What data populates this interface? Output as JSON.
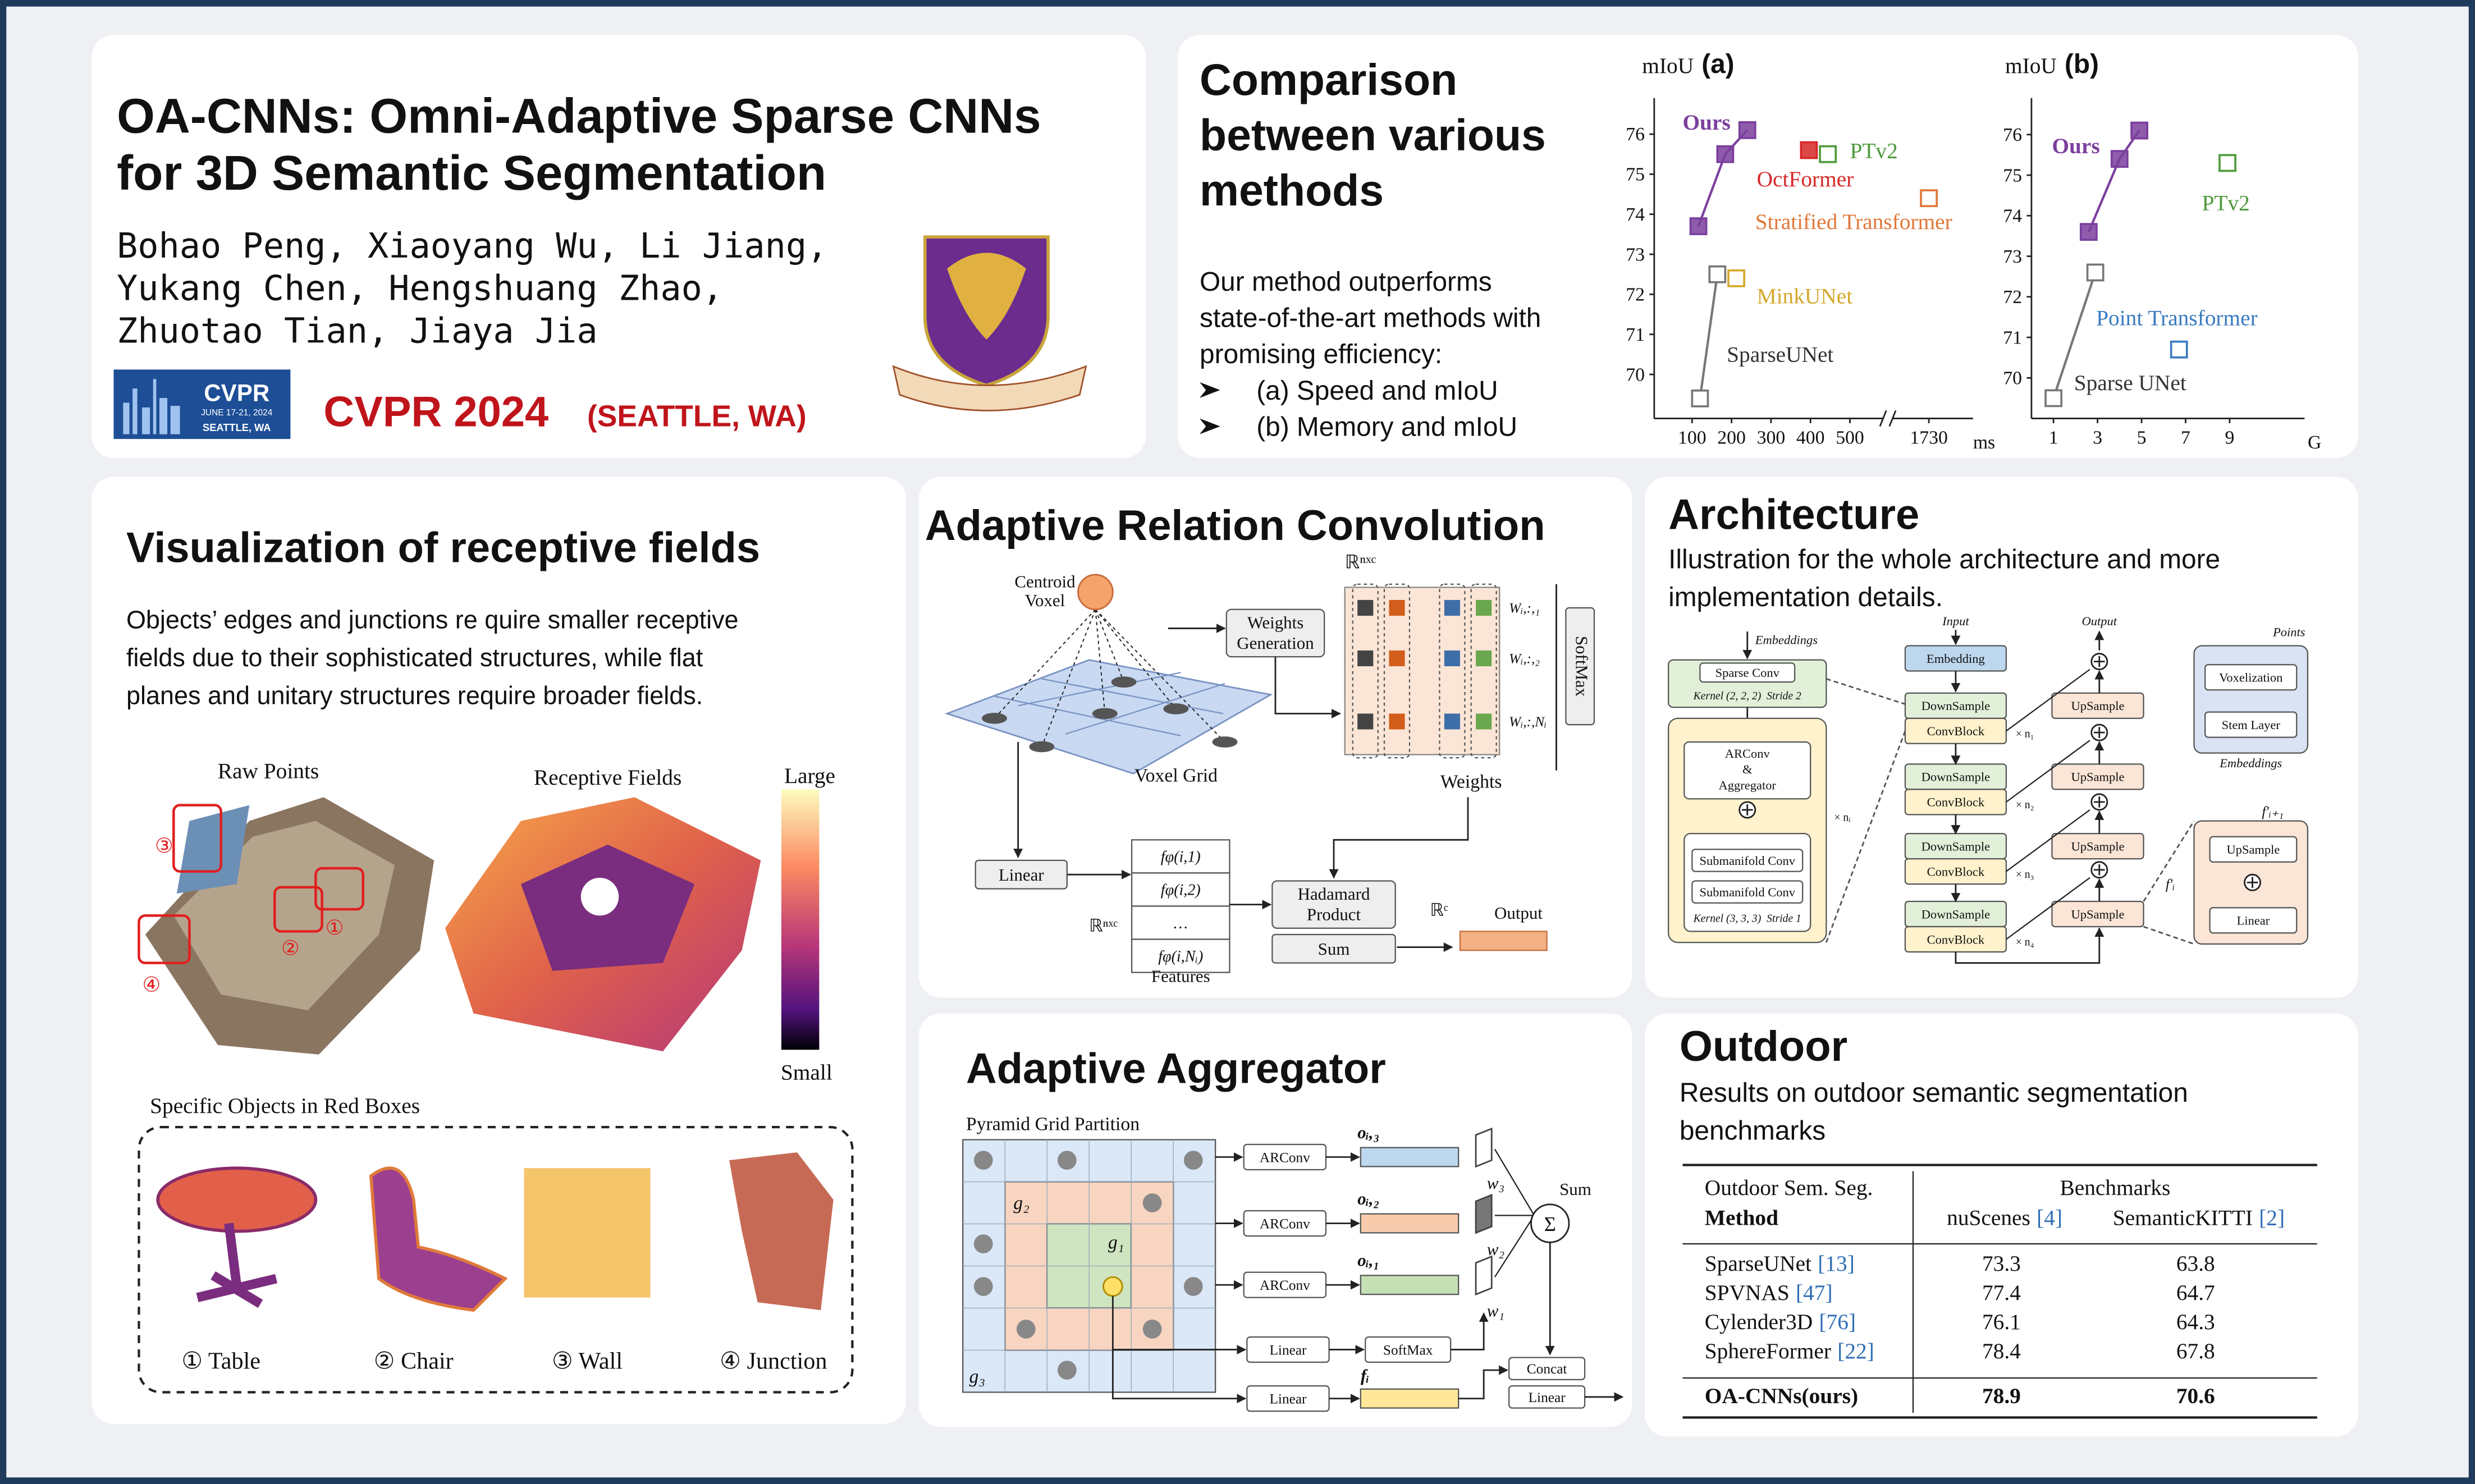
{
  "header": {
    "title": [
      "OA-CNNs: Omni-Adaptive Sparse CNNs",
      "for 3D Semantic Segmentation"
    ],
    "authors": [
      "Bohao Peng, Xiaoyang Wu, Li Jiang,",
      "Yukang Chen, Hengshuang Zhao,",
      "Zhuotao Tian, Jiaya Jia"
    ],
    "cvpr_logo": {
      "name": "CVPR",
      "dates": "JUNE 17-21, 2024",
      "city": "SEATTLE, WA"
    },
    "conference": "CVPR 2024",
    "location": "(SEATTLE, WA)"
  },
  "comparison": {
    "title": [
      "Comparison",
      "between various",
      "methods"
    ],
    "description": [
      "Our method outperforms",
      "state-of-the-art methods with",
      "promising efficiency:"
    ],
    "bullets": [
      "(a) Speed and mIoU",
      "(b) Memory and mIoU"
    ],
    "charts": [
      {
        "type": "scatter",
        "label": "(a)",
        "y_label": "mIoU",
        "x_unit": "ms",
        "xlim": [
          0,
          1840
        ],
        "ylim": [
          68.9,
          76.9
        ],
        "xticks": [
          100,
          200,
          300,
          400,
          500,
          1730
        ],
        "yticks": [
          70,
          71,
          72,
          73,
          74,
          75,
          76
        ],
        "series": [
          {
            "name": "Ours",
            "color": "#7b3f9e",
            "filled": true,
            "line": true,
            "x": [
              116,
              184,
              240
            ],
            "values": [
              73.7,
              75.5,
              76.1
            ]
          },
          {
            "name": "OctFormer",
            "color": "#d62828",
            "filled": true,
            "x": [
              396
            ],
            "values": [
              75.6
            ]
          },
          {
            "name": "PTv2",
            "color": "#4d9a3a",
            "x": [
              444
            ],
            "values": [
              75.5
            ]
          },
          {
            "name": "Stratified Transformer",
            "color": "#e0783a",
            "x": [
              1730
            ],
            "values": [
              74.4
            ]
          },
          {
            "name": "MinkUNet",
            "color": "#d4a82a",
            "x": [
              212
            ],
            "values": [
              72.4
            ]
          },
          {
            "name": "SparseUNet",
            "color": "#777777",
            "line": true,
            "x": [
              120,
              164
            ],
            "values": [
              69.4,
              72.5
            ]
          }
        ]
      },
      {
        "type": "scatter",
        "label": "(b)",
        "y_label": "mIoU",
        "x_unit": "G",
        "xlim": [
          0,
          12.4
        ],
        "ylim": [
          69,
          76.9
        ],
        "xticks": [
          1,
          3,
          5,
          7,
          9
        ],
        "yticks": [
          70,
          71,
          72,
          73,
          74,
          75,
          76
        ],
        "series": [
          {
            "name": "Ours",
            "color": "#7b3f9e",
            "filled": true,
            "line": true,
            "x": [
              2.6,
              4.0,
              4.9
            ],
            "values": [
              73.6,
              75.4,
              76.1
            ]
          },
          {
            "name": "PTv2",
            "color": "#4d9a3a",
            "x": [
              8.9
            ],
            "values": [
              75.3
            ]
          },
          {
            "name": "Point Transformer",
            "color": "#3a7ac0",
            "x": [
              6.7
            ],
            "values": [
              70.7
            ]
          },
          {
            "name": "Sparse UNet",
            "color": "#777777",
            "line": true,
            "x": [
              1.0,
              2.9
            ],
            "values": [
              69.5,
              72.6
            ]
          }
        ]
      }
    ]
  },
  "visualization": {
    "title": "Visualization of receptive fields",
    "description": [
      "Objects’ edges and junctions re quire smaller receptive",
      "fields due to their sophisticated structures, while flat",
      "planes and unitary structures require broader fields."
    ],
    "raw_points": "Raw Points",
    "receptive_fields": "Receptive Fields",
    "colorbar": {
      "top": "Large",
      "bottom": "Small"
    },
    "markers": [
      "③",
      "②",
      "①",
      "④"
    ],
    "objects_caption": "Specific Objects in Red Boxes",
    "objects": [
      "① Table",
      "② Chair",
      "③ Wall",
      "④ Junction"
    ]
  },
  "arc": {
    "title": "Adaptive Relation Convolution",
    "centroid": [
      "Centroid",
      "Voxel"
    ],
    "voxel_grid": "Voxel Grid",
    "weights_generation": [
      "Weights",
      "Generation"
    ],
    "weights_space": "ℝⁿˣᶜ",
    "weight_rows": [
      "Wᵢ,:,₁",
      "Wᵢ,:,₂",
      "Wᵢ,:,Nᵢ"
    ],
    "softmax": "SoftMax",
    "weights": "Weights",
    "linear": "Linear",
    "features": [
      "fφ(i,1)",
      "fφ(i,2)",
      "…",
      "fφ(i,Nᵢ)"
    ],
    "features_space": "ℝⁿˣᶜ",
    "features_label": "Features",
    "hadamard": [
      "Hadamard",
      "Product"
    ],
    "sum": "Sum",
    "output_space": "ℝᶜ",
    "output": "Output"
  },
  "architecture": {
    "title": "Architecture",
    "description": [
      "Illustration for the whole architecture and more",
      "implementation details."
    ],
    "block": {
      "embeddings": "Embeddings",
      "sparse_conv": "Sparse Conv",
      "downsample_kernel": "Kernel (2, 2, 2)  Stride 2",
      "arconv": [
        "ARConv",
        "&",
        "Aggregator"
      ],
      "submanifold": [
        "Submanifold Conv",
        "Submanifold Conv"
      ],
      "submanifold_kernel": "Kernel (3, 3, 3)  Stride 1",
      "repeat": "× nᵢ"
    },
    "unet": {
      "input": "Input",
      "output": "Output",
      "embedding": "Embedding",
      "downsample": [
        "DownSample",
        "DownSample",
        "DownSample",
        "DownSample"
      ],
      "convblock": [
        "ConvBlock",
        "ConvBlock",
        "ConvBlock",
        "ConvBlock"
      ],
      "upsample": [
        "UpSample",
        "UpSample",
        "UpSample",
        "UpSample"
      ],
      "repeats": [
        "× n₁",
        "× n₂",
        "× n₃",
        "× n₄"
      ]
    },
    "stem": {
      "points": "Points",
      "voxelization": "Voxelization",
      "stem_layer": "Stem Layer",
      "embeddings": "Embeddings"
    },
    "decoder": {
      "input": "f′ᵢ₊₁",
      "upsample": "UpSample",
      "skip": "f′ᵢ",
      "linear": "Linear"
    }
  },
  "aggregator": {
    "title": "Adaptive Aggregator",
    "partition": "Pyramid Grid Partition",
    "grids": [
      "g₂",
      "g₁",
      "g₃"
    ],
    "arconv": [
      "ARConv",
      "ARConv",
      "ARConv"
    ],
    "outputs": [
      "oᵢ,₃",
      "oᵢ,₂",
      "oᵢ,₁"
    ],
    "weights": [
      "w₃",
      "w₂",
      "w₁"
    ],
    "sum": "Sum",
    "sigma": "Σ",
    "linear": [
      "Linear",
      "Linear"
    ],
    "softmax": "SoftMax",
    "feature": "fᵢ",
    "concat": "Concat",
    "final_linear": "Linear"
  },
  "outdoor": {
    "title": "Outdoor",
    "description": [
      "Results on outdoor semantic segmentation",
      "benchmarks"
    ],
    "table": {
      "header": {
        "task": "Outdoor Sem. Seg.",
        "method": "Method",
        "group": "Benchmarks",
        "columns": [
          {
            "name": "nuScenes",
            "ref": "[4]"
          },
          {
            "name": "SemanticKITTI",
            "ref": "[2]"
          }
        ]
      },
      "rows": [
        {
          "method": "SparseUNet",
          "ref": "[13]",
          "values": [
            73.3,
            63.8
          ]
        },
        {
          "method": "SPVNAS",
          "ref": "[47]",
          "values": [
            77.4,
            64.7
          ]
        },
        {
          "method": "Cylender3D",
          "ref": "[76]",
          "values": [
            76.1,
            64.3
          ]
        },
        {
          "method": "SphereFormer",
          "ref": "[22]",
          "values": [
            78.4,
            67.8
          ]
        }
      ],
      "final_row": {
        "method": "OA-CNNs(ours)",
        "values": [
          78.9,
          70.6
        ]
      }
    }
  }
}
